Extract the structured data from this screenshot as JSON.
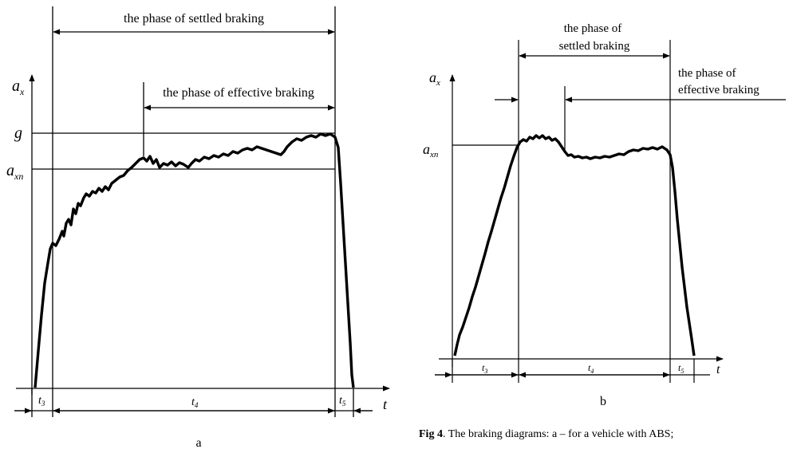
{
  "diagram_a": {
    "settled_label": "the phase of settled braking",
    "effective_label": "the phase of effective braking",
    "axis_y_main": "a",
    "axis_y_sub": "x",
    "g_label": "g",
    "axn_main": "a",
    "axn_sub": "xn",
    "axis_t": "t",
    "t3_main": "t",
    "t3_sub": "3",
    "t4_main": "t",
    "t4_sub": "4",
    "t5_main": "t",
    "t5_sub": "5",
    "panel_label": "a"
  },
  "diagram_b": {
    "settled_line1": "the phase of",
    "settled_line2": "settled braking",
    "effective_line1": "the phase of",
    "effective_line2": "effective braking",
    "axis_y_main": "a",
    "axis_y_sub": "x",
    "axn_main": "a",
    "axn_sub": "xn",
    "axis_t": "t",
    "t3_main": "t",
    "t3_sub": "3",
    "t4_main": "t",
    "t4_sub": "4",
    "t5_main": "t",
    "t5_sub": "5",
    "panel_label": "b"
  },
  "caption": {
    "prefix": "Fig 4",
    "text": ". The braking diagrams: a – for a vehicle with ABS;"
  }
}
